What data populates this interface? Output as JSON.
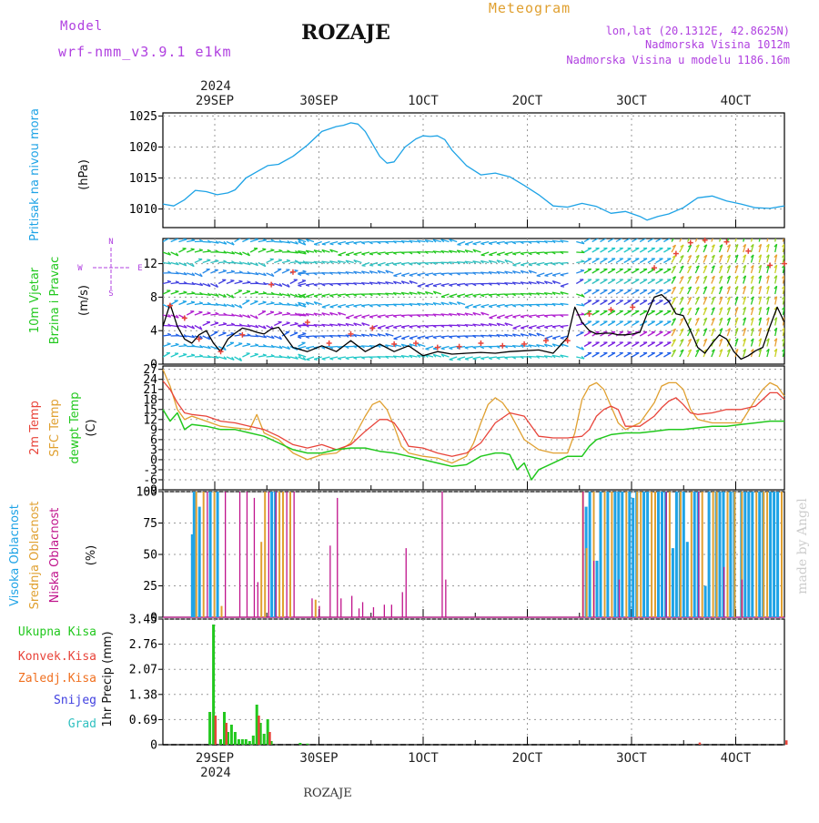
{
  "header": {
    "model_label": "Model",
    "model_name": "wrf-nmm_v3.9.1  e1km",
    "station": "ROZAJE",
    "meteogram": "Meteogram",
    "lonlat": "lon,lat (20.1312E, 42.8625N)",
    "elevation": "Nadmorska Visina 1012m",
    "model_elevation": "Nadmorska Visina u modelu 1186.16m",
    "watermark": "made by Angel",
    "footer": "ROZAJE"
  },
  "time_axis": {
    "year": "2024",
    "ticks": [
      "29SEP",
      "30SEP",
      "1OCT",
      "2OCT",
      "3OCT",
      "4OCT"
    ]
  },
  "colors": {
    "pressure": "#1ea3e6",
    "temp2m": "#e8443a",
    "sfc": "#e0a030",
    "dewpt": "#22c81e",
    "high_cloud": "#1ea3e6",
    "mid_cloud": "#e0a030",
    "low_cloud": "#c0148c",
    "total_precip": "#22c81e",
    "conv_precip": "#e8443a",
    "frz_precip": "#f07020",
    "snow": "#4040e0",
    "graupel": "#30c0c0",
    "wind_label": "#b040e0",
    "title_purple": "#b040e0",
    "title_orange": "#e0a030"
  },
  "chart_data": [
    {
      "type": "line",
      "panel": "pressure",
      "ylabel_lines": [
        "Pritisak na nivou mora"
      ],
      "unit": "(hPa)",
      "ylim": [
        1007,
        1025.5
      ],
      "yticks": [
        1010,
        1015,
        1020,
        1025
      ],
      "series": [
        {
          "key": "pressure",
          "x": [
            0,
            3,
            6,
            9,
            12,
            15,
            18,
            20,
            23,
            26,
            29,
            32,
            36,
            40,
            44,
            48,
            50,
            52,
            54,
            56,
            58,
            60,
            62,
            64,
            67,
            70,
            72,
            74,
            76,
            78,
            80,
            84,
            88,
            92,
            96,
            100,
            104,
            108,
            112,
            116,
            120,
            124,
            128,
            132,
            134,
            137,
            140,
            144,
            148,
            152,
            156,
            160,
            164,
            168,
            172
          ],
          "y": [
            1010.8,
            1010.5,
            1011.5,
            1013,
            1012.8,
            1012.3,
            1012.6,
            1013.1,
            1015,
            1016,
            1017,
            1017.2,
            1018.5,
            1020.3,
            1022.5,
            1023.3,
            1023.5,
            1023.9,
            1023.7,
            1022.5,
            1020.5,
            1018.5,
            1017.4,
            1017.6,
            1020,
            1021.3,
            1021.8,
            1021.7,
            1021.8,
            1021.2,
            1019.5,
            1017,
            1015.5,
            1015.8,
            1015.2,
            1013.8,
            1012.3,
            1010.5,
            1010.3,
            1010.9,
            1010.4,
            1009.3,
            1009.6,
            1008.8,
            1008.2,
            1008.8,
            1009.2,
            1010.2,
            1011.8,
            1012.1,
            1011.3,
            1010.8,
            1010.2,
            1010.1,
            1010.5
          ]
        }
      ]
    },
    {
      "type": "line",
      "panel": "wind",
      "ylabel_lines": [
        "10m Vjetar",
        "Brzina i Pravac"
      ],
      "unit": "(m/s)",
      "compass": [
        "N",
        "W",
        "E",
        "S"
      ],
      "ylim": [
        0,
        15
      ],
      "yticks": [
        0,
        4,
        8,
        12
      ],
      "series": [
        {
          "key": "speed_black",
          "x": [
            0,
            2,
            4,
            6,
            8,
            10,
            12,
            14,
            16,
            18,
            20,
            22,
            24,
            26,
            28,
            30,
            32,
            34,
            36,
            40,
            44,
            48,
            52,
            56,
            60,
            64,
            68,
            72,
            76,
            80,
            84,
            88,
            92,
            96,
            100,
            104,
            108,
            112,
            114,
            116,
            118,
            120,
            122,
            124,
            126,
            128,
            130,
            132,
            134,
            136,
            138,
            140,
            142,
            144,
            146,
            148,
            150,
            152,
            154,
            156,
            158,
            160,
            162,
            164,
            166,
            168,
            170,
            172
          ],
          "y": [
            4.5,
            7.2,
            4.5,
            3,
            2.5,
            3.5,
            4,
            2.5,
            1.5,
            3,
            3.7,
            4.3,
            4.1,
            3.8,
            3.6,
            4.2,
            4.4,
            3.2,
            2,
            1.5,
            2.2,
            1.5,
            2.8,
            1.5,
            2.4,
            1.5,
            2.2,
            1,
            1.5,
            1.2,
            1.3,
            1.4,
            1.3,
            1.5,
            1.6,
            1.7,
            1.3,
            3.2,
            6.8,
            5,
            4,
            3.6,
            3.7,
            3.7,
            3.5,
            3.5,
            3.6,
            3.8,
            6,
            8,
            8.3,
            7.5,
            6,
            5.8,
            4,
            2,
            1.3,
            2.5,
            3.5,
            3,
            1.5,
            0.6,
            1,
            1.6,
            2,
            4.5,
            6.8,
            5
          ]
        },
        {
          "key": "gust_red",
          "x": [
            2,
            6,
            10,
            16,
            22,
            30,
            36,
            40,
            46,
            52,
            58,
            64,
            70,
            76,
            82,
            88,
            94,
            100,
            106,
            112,
            118,
            124,
            130,
            136,
            142,
            146,
            150,
            156,
            162,
            168,
            172
          ],
          "y": [
            7,
            5.5,
            3,
            1.5,
            3.5,
            9.5,
            11,
            5,
            2.5,
            3.6,
            4.3,
            2.4,
            2.5,
            2,
            2.1,
            2.5,
            2.2,
            2.4,
            2.8,
            2.8,
            6,
            6.5,
            6.8,
            11.5,
            13.2,
            14.5,
            14.8,
            14.6,
            13.5,
            11.8,
            12
          ]
        }
      ]
    },
    {
      "type": "line",
      "panel": "temperature",
      "ylabel_lines": [
        "2m Temp",
        "SFC Temp",
        "dewpt Temp"
      ],
      "unit": "(C)",
      "ylim": [
        -9,
        28
      ],
      "yticks": [
        -9,
        -6,
        -3,
        0,
        3,
        6,
        9,
        12,
        15,
        18,
        21,
        24,
        27
      ],
      "series": [
        {
          "key": "temp2m",
          "x": [
            0,
            2,
            4,
            6,
            8,
            12,
            16,
            20,
            24,
            28,
            32,
            36,
            40,
            44,
            48,
            52,
            56,
            60,
            62,
            64,
            66,
            68,
            72,
            76,
            80,
            84,
            88,
            92,
            96,
            100,
            104,
            108,
            112,
            116,
            118,
            120,
            122,
            124,
            126,
            128,
            132,
            136,
            138,
            140,
            142,
            144,
            146,
            148,
            152,
            156,
            160,
            164,
            168,
            170,
            172
          ],
          "y": [
            23.5,
            21,
            17,
            14,
            13.5,
            13,
            11.5,
            11,
            10,
            9,
            7,
            4.5,
            3.5,
            4.5,
            3,
            4.5,
            8.5,
            12,
            12,
            11,
            8,
            4,
            3.5,
            2,
            1,
            2,
            5,
            11,
            14,
            13,
            7,
            6.5,
            6.5,
            7,
            9,
            13,
            15,
            16,
            15,
            10,
            10,
            13,
            15.5,
            17.5,
            18.5,
            16.5,
            14,
            13.5,
            14,
            15,
            15,
            16,
            20,
            20,
            18
          ]
        },
        {
          "key": "sfc",
          "x": [
            0,
            2,
            4,
            6,
            8,
            12,
            16,
            20,
            24,
            26,
            28,
            30,
            32,
            36,
            40,
            44,
            48,
            52,
            56,
            58,
            60,
            62,
            64,
            66,
            68,
            72,
            76,
            80,
            84,
            86,
            88,
            90,
            92,
            94,
            96,
            100,
            104,
            108,
            112,
            114,
            116,
            118,
            120,
            122,
            124,
            126,
            128,
            132,
            136,
            138,
            140,
            142,
            144,
            146,
            148,
            152,
            156,
            160,
            164,
            166,
            168,
            170,
            172
          ],
          "y": [
            27,
            22,
            15,
            12,
            13,
            11.5,
            10,
            9.5,
            9,
            13.5,
            8,
            7,
            6,
            2,
            0,
            1.5,
            2,
            5,
            13,
            16.5,
            17.5,
            15,
            10,
            4,
            2,
            1,
            0.5,
            -1,
            1,
            5,
            11,
            16.5,
            18.5,
            17,
            14,
            6,
            3,
            2,
            2,
            8,
            18,
            22,
            23,
            21,
            16,
            11,
            9,
            11,
            17,
            22,
            23,
            23,
            21,
            15,
            12,
            11,
            11,
            11,
            18,
            21,
            23,
            22,
            19
          ]
        },
        {
          "key": "dewpt",
          "x": [
            0,
            2,
            4,
            6,
            8,
            12,
            16,
            20,
            24,
            28,
            32,
            36,
            40,
            44,
            48,
            52,
            56,
            60,
            64,
            68,
            72,
            76,
            80,
            84,
            88,
            92,
            94,
            96,
            98,
            100,
            102,
            104,
            108,
            112,
            116,
            118,
            120,
            124,
            128,
            132,
            136,
            140,
            144,
            148,
            152,
            156,
            160,
            164,
            168,
            172
          ],
          "y": [
            15,
            11.5,
            14,
            9,
            10.5,
            10,
            9,
            9,
            8,
            7,
            5,
            3,
            2,
            2,
            3,
            3.5,
            3.5,
            2.5,
            2,
            1,
            0,
            -1,
            -2,
            -1.5,
            1,
            2,
            2,
            1.5,
            -3,
            -1,
            -6,
            -3,
            -1,
            1,
            1,
            4,
            6,
            7.5,
            8,
            8,
            8.5,
            9,
            9,
            9.5,
            10,
            10,
            10.5,
            11,
            11.5,
            11.5
          ]
        }
      ]
    },
    {
      "type": "bar",
      "panel": "clouds",
      "ylabel_lines": [
        "Visoka Oblacnost",
        "Srednja Oblacnost",
        "Niska Oblacnost"
      ],
      "unit": "(%)",
      "ylim": [
        0,
        100
      ],
      "yticks": [
        0,
        25,
        50,
        75,
        100
      ],
      "high": {
        "x": [
          8,
          8.5,
          10,
          13,
          15,
          30,
          31,
          117,
          118,
          120,
          121,
          123,
          125,
          126,
          127,
          129,
          130,
          131,
          133,
          134,
          137,
          138,
          139,
          141,
          142,
          143,
          144,
          145,
          147,
          148,
          150,
          151,
          153,
          154,
          155,
          157,
          158,
          160,
          161,
          162,
          163,
          165,
          166,
          168,
          169,
          170
        ],
        "y": [
          66,
          100,
          88,
          100,
          100,
          100,
          100,
          88,
          100,
          45,
          100,
          100,
          100,
          100,
          100,
          100,
          95,
          100,
          100,
          100,
          100,
          100,
          100,
          55,
          100,
          100,
          100,
          60,
          100,
          100,
          25,
          100,
          100,
          100,
          100,
          100,
          100,
          100,
          100,
          100,
          100,
          100,
          100,
          100,
          100,
          100
        ]
      },
      "mid": {
        "x": [
          9,
          11,
          14,
          16,
          27,
          28,
          32,
          33,
          35,
          42,
          116,
          117,
          119,
          122,
          124,
          128,
          131,
          132,
          135,
          136,
          140,
          143,
          146,
          149,
          152,
          153,
          156,
          158,
          160,
          164,
          166,
          167,
          171
        ],
        "y": [
          100,
          100,
          100,
          9,
          60,
          100,
          100,
          100,
          100,
          14,
          100,
          55,
          100,
          100,
          100,
          100,
          100,
          100,
          100,
          100,
          100,
          100,
          100,
          100,
          100,
          100,
          100,
          100,
          100,
          100,
          100,
          100,
          100
        ]
      },
      "low": {
        "x": [
          12,
          17,
          21,
          23,
          25,
          26,
          29,
          31,
          34,
          36,
          41,
          43,
          46,
          48,
          49,
          52,
          54,
          55,
          58,
          61,
          63,
          66,
          67,
          77,
          78,
          116,
          119,
          126,
          139,
          148,
          155,
          160
        ],
        "y": [
          100,
          100,
          100,
          100,
          95,
          28,
          100,
          100,
          100,
          100,
          15,
          9,
          57,
          95,
          15,
          17,
          7,
          12,
          8,
          10,
          10,
          20,
          55,
          100,
          30,
          100,
          45,
          30,
          100,
          100,
          40,
          30
        ]
      }
    },
    {
      "type": "bar",
      "panel": "precip",
      "legend": [
        "Ukupna Kisa",
        "Konvek.Kisa",
        "Zaledj.Kisa",
        "Snijeg",
        "Grad"
      ],
      "ylabel_lines": [
        "1hr Precip (mm)"
      ],
      "ylim": [
        0,
        3.45
      ],
      "yticks": [
        0,
        0.69,
        1.38,
        2.07,
        2.76,
        3.45
      ],
      "total": {
        "x": [
          13,
          14,
          16,
          17,
          18,
          19,
          20,
          21,
          22,
          23,
          24,
          25,
          26,
          27,
          28,
          29,
          30,
          38,
          40
        ],
        "y": [
          0.9,
          3.3,
          0.15,
          0.9,
          0.35,
          0.55,
          0.35,
          0.15,
          0.15,
          0.15,
          0.1,
          0.25,
          1.1,
          0.6,
          0.3,
          0.7,
          0.1,
          0.05,
          0.03
        ]
      },
      "conv": {
        "x": [
          14,
          17,
          26,
          29,
          148,
          172
        ],
        "y": [
          0.8,
          0.6,
          0.8,
          0.35,
          0.06,
          0.12
        ]
      }
    }
  ]
}
